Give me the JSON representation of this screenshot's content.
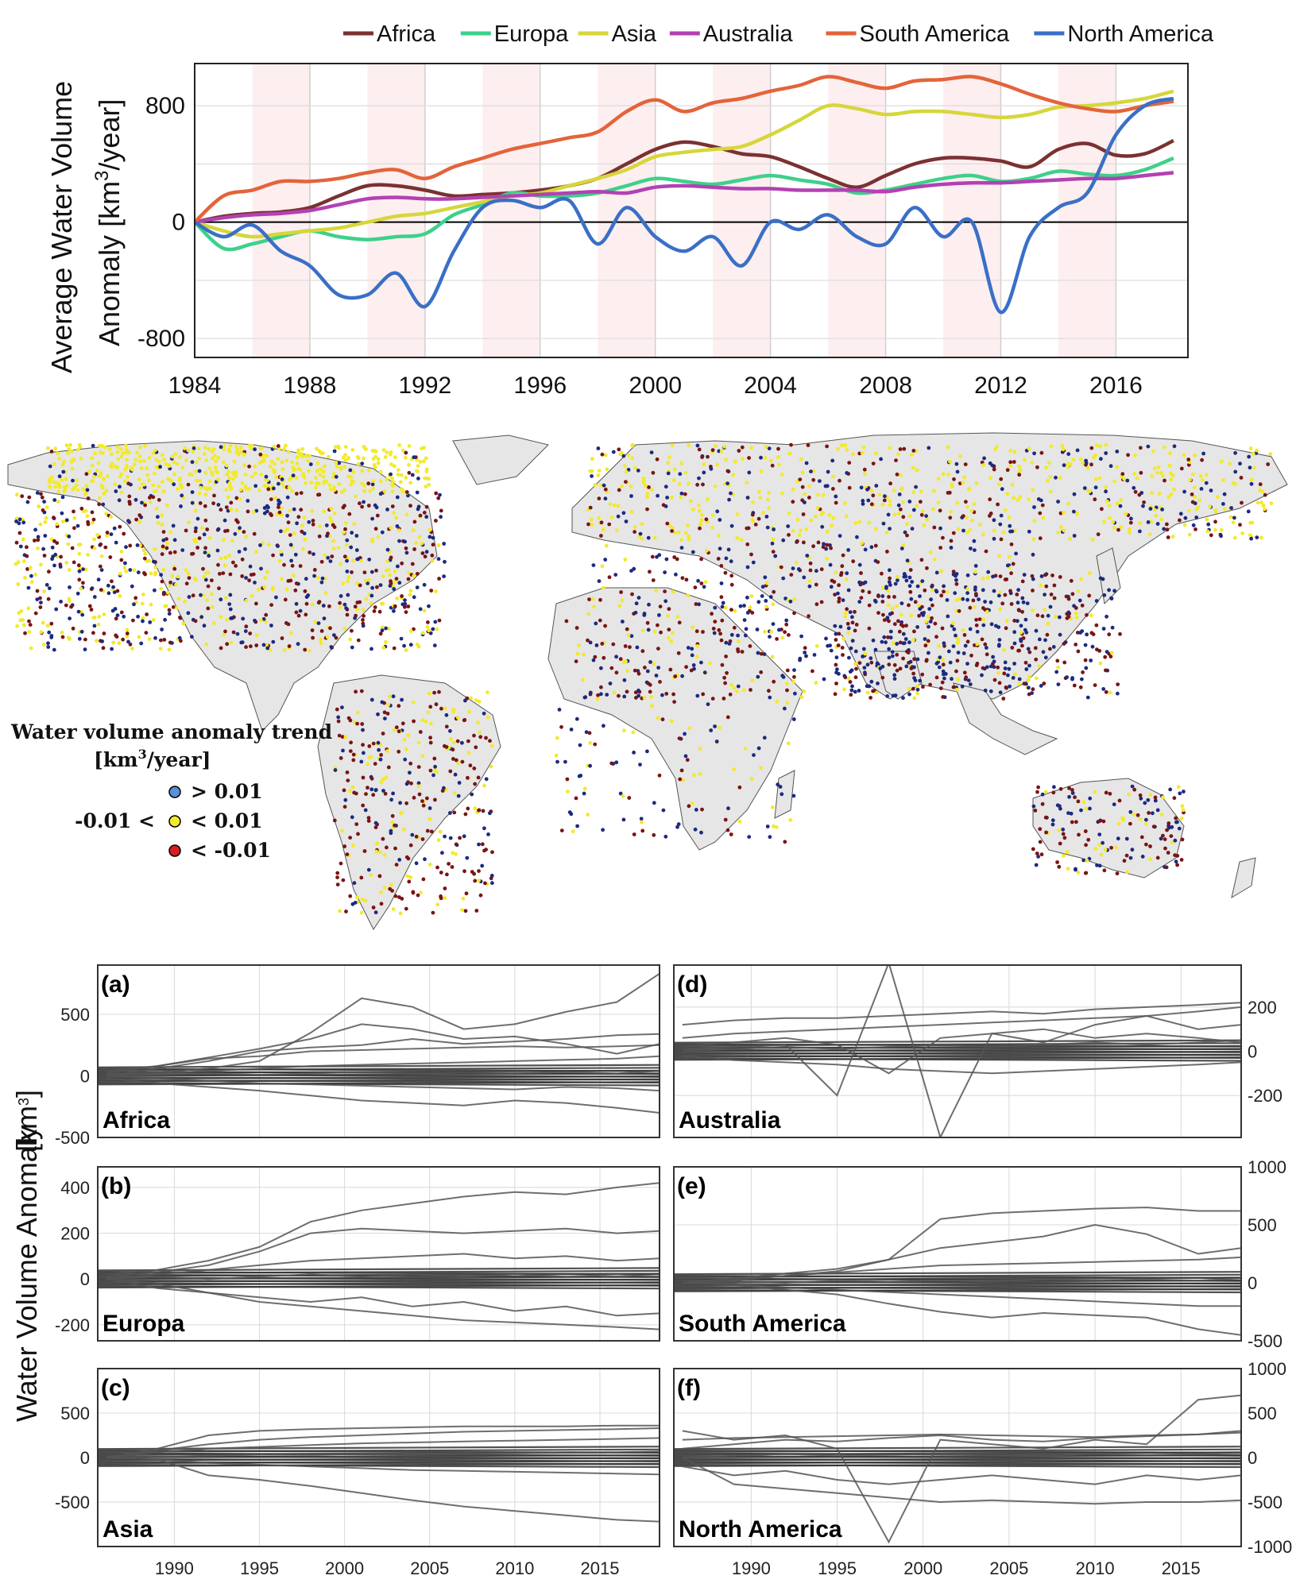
{
  "top_chart": {
    "ylabel_line1": "Average Water Volume",
    "ylabel_line2": "Anomaly [km",
    "ylabel_sup": "3",
    "ylabel_tail": "/year]",
    "legend_placement": "top"
  },
  "map": {
    "legend_title": "Water volume anomaly trend",
    "legend_unit": "[km",
    "legend_unit_sup": "3",
    "legend_unit_tail": "/year]",
    "classes": [
      {
        "prefix": "",
        "label": "> 0.01",
        "color": "#5b8fd6"
      },
      {
        "prefix": "-0.01 <",
        "label": "< 0.01",
        "color": "#f2ea2a"
      },
      {
        "prefix": "",
        "label": "< -0.01",
        "color": "#d62020"
      }
    ],
    "land_color": "#e6e6e6",
    "dot_colors": [
      "#f2ea2a",
      "#1c2a80",
      "#7a1414"
    ]
  },
  "small_multiples": {
    "ylabel": "Water Volume Anomaly",
    "ylabel_unit": "[km",
    "ylabel_unit_sup": "3",
    "ylabel_unit_tail": "]"
  },
  "chart_data": [
    {
      "type": "line",
      "x_range": [
        1984,
        2018.5
      ],
      "ylim": [
        -930,
        1090
      ],
      "xticks": [
        1984,
        1988,
        1992,
        1996,
        2000,
        2004,
        2008,
        2012,
        2016
      ],
      "yticks": [
        -800,
        0,
        800
      ],
      "grid": true,
      "shaded_periods": [
        [
          1986,
          1988
        ],
        [
          1990,
          1992
        ],
        [
          1994,
          1996
        ],
        [
          1998,
          2000
        ],
        [
          2002,
          2004
        ],
        [
          2006,
          2008
        ],
        [
          2010,
          2012
        ],
        [
          2014,
          2016
        ]
      ],
      "x": [
        1984,
        1985,
        1986,
        1987,
        1988,
        1989,
        1990,
        1991,
        1992,
        1993,
        1994,
        1995,
        1996,
        1997,
        1998,
        1999,
        2000,
        2001,
        2002,
        2003,
        2004,
        2005,
        2006,
        2007,
        2008,
        2009,
        2010,
        2011,
        2012,
        2013,
        2014,
        2015,
        2016,
        2017,
        2018
      ],
      "series": [
        {
          "name": "Africa",
          "color": "#7b3131",
          "values": [
            0,
            40,
            60,
            70,
            100,
            180,
            250,
            250,
            220,
            180,
            190,
            200,
            220,
            250,
            300,
            400,
            500,
            550,
            520,
            470,
            450,
            380,
            300,
            240,
            320,
            400,
            440,
            440,
            420,
            380,
            500,
            540,
            460,
            470,
            560
          ]
        },
        {
          "name": "Europa",
          "color": "#3ed08a",
          "values": [
            0,
            -180,
            -150,
            -100,
            -60,
            -100,
            -120,
            -100,
            -80,
            50,
            120,
            200,
            180,
            180,
            200,
            250,
            300,
            280,
            260,
            290,
            320,
            290,
            260,
            200,
            220,
            260,
            300,
            320,
            280,
            300,
            350,
            330,
            320,
            360,
            440
          ]
        },
        {
          "name": "Asia",
          "color": "#d6d63a",
          "values": [
            0,
            -60,
            -100,
            -80,
            -60,
            -40,
            0,
            40,
            60,
            100,
            140,
            180,
            200,
            250,
            300,
            360,
            450,
            480,
            500,
            520,
            600,
            700,
            800,
            780,
            740,
            760,
            760,
            740,
            720,
            740,
            790,
            800,
            820,
            850,
            900
          ]
        },
        {
          "name": "Australia",
          "color": "#b341b3",
          "values": [
            0,
            30,
            50,
            60,
            80,
            120,
            160,
            170,
            160,
            160,
            170,
            180,
            190,
            200,
            210,
            200,
            240,
            250,
            240,
            230,
            230,
            220,
            220,
            220,
            210,
            240,
            260,
            270,
            270,
            280,
            290,
            300,
            300,
            320,
            340
          ]
        },
        {
          "name": "South America",
          "color": "#e3643a",
          "values": [
            0,
            180,
            220,
            280,
            280,
            300,
            340,
            360,
            300,
            380,
            440,
            500,
            540,
            580,
            620,
            760,
            840,
            760,
            820,
            850,
            900,
            940,
            1000,
            960,
            920,
            970,
            980,
            1000,
            950,
            880,
            820,
            780,
            760,
            800,
            830
          ]
        },
        {
          "name": "North America",
          "color": "#3a6fc6",
          "values": [
            0,
            -100,
            -20,
            -200,
            -300,
            -500,
            -500,
            -350,
            -580,
            -200,
            100,
            150,
            100,
            150,
            -150,
            100,
            -100,
            -200,
            -100,
            -300,
            0,
            -50,
            50,
            -100,
            -150,
            100,
            -100,
            0,
            -620,
            -100,
            100,
            200,
            600,
            800,
            850
          ]
        }
      ]
    },
    {
      "type": "line",
      "panel": "(a)",
      "region": "Africa",
      "side": "left",
      "x_range": [
        1985.5,
        2018.5
      ],
      "ylim": [
        -500,
        900
      ],
      "xticks": [
        1990,
        1995,
        2000,
        2005,
        2010,
        2015
      ],
      "yticks": [
        -500,
        0,
        500
      ],
      "x": [
        1986,
        1989,
        1992,
        1995,
        1998,
        2001,
        2004,
        2007,
        2010,
        2013,
        2016,
        2018.5
      ],
      "series": [
        {
          "values": [
            10,
            30,
            60,
            120,
            350,
            630,
            560,
            380,
            420,
            520,
            600,
            830
          ]
        },
        {
          "values": [
            40,
            80,
            150,
            220,
            300,
            420,
            380,
            300,
            320,
            260,
            180,
            260
          ]
        },
        {
          "values": [
            0,
            60,
            120,
            200,
            230,
            250,
            300,
            260,
            280,
            300,
            330,
            340
          ]
        },
        {
          "values": [
            20,
            80,
            140,
            160,
            200,
            210,
            220,
            230,
            240,
            230,
            240,
            250
          ]
        },
        {
          "values": [
            -20,
            -60,
            -90,
            -120,
            -160,
            -200,
            -220,
            -240,
            -200,
            -220,
            -260,
            -300
          ]
        },
        {
          "values": [
            0,
            20,
            40,
            60,
            80,
            90,
            100,
            110,
            120,
            130,
            140,
            160
          ]
        },
        {
          "values": [
            0,
            -20,
            -40,
            -60,
            -70,
            -80,
            -90,
            -100,
            -110,
            -90,
            -100,
            -120
          ]
        },
        {
          "values": [
            0,
            10,
            20,
            10,
            20,
            30,
            20,
            10,
            20,
            30,
            20,
            40
          ]
        }
      ]
    },
    {
      "type": "line",
      "panel": "(d)",
      "region": "Australia",
      "side": "right",
      "x_range": [
        1985.5,
        2018.5
      ],
      "ylim": [
        -390,
        390
      ],
      "xticks": [
        1990,
        1995,
        2000,
        2005,
        2010,
        2015
      ],
      "yticks": [
        -200,
        0,
        200
      ],
      "x": [
        1986,
        1989,
        1992,
        1995,
        1998,
        2001,
        2004,
        2007,
        2010,
        2013,
        2016,
        2018.5
      ],
      "series": [
        {
          "values": [
            10,
            20,
            30,
            -200,
            400,
            -390,
            80,
            100,
            60,
            80,
            60,
            40
          ]
        },
        {
          "values": [
            120,
            140,
            150,
            150,
            160,
            170,
            180,
            170,
            190,
            200,
            210,
            220
          ]
        },
        {
          "values": [
            60,
            80,
            90,
            100,
            110,
            120,
            130,
            140,
            150,
            160,
            180,
            200
          ]
        },
        {
          "values": [
            -20,
            -40,
            -50,
            -60,
            -80,
            -90,
            -100,
            -90,
            -80,
            -70,
            -60,
            -50
          ]
        },
        {
          "values": [
            20,
            40,
            60,
            30,
            -100,
            60,
            80,
            40,
            120,
            160,
            100,
            120
          ]
        },
        {
          "values": [
            0,
            10,
            20,
            10,
            20,
            30,
            20,
            30,
            40,
            30,
            40,
            50
          ]
        }
      ]
    },
    {
      "type": "line",
      "panel": "(b)",
      "region": "Europa",
      "side": "left",
      "x_range": [
        1985.5,
        2018.5
      ],
      "ylim": [
        -270,
        490
      ],
      "xticks": [
        1990,
        1995,
        2000,
        2005,
        2010,
        2015
      ],
      "yticks": [
        -200,
        0,
        200,
        400
      ],
      "x": [
        1986,
        1989,
        1992,
        1995,
        1998,
        2001,
        2004,
        2007,
        2010,
        2013,
        2016,
        2018.5
      ],
      "series": [
        {
          "values": [
            20,
            40,
            80,
            140,
            250,
            300,
            330,
            360,
            380,
            370,
            400,
            420
          ]
        },
        {
          "values": [
            10,
            30,
            60,
            120,
            200,
            220,
            210,
            200,
            210,
            220,
            200,
            210
          ]
        },
        {
          "values": [
            0,
            -20,
            -60,
            -100,
            -120,
            -140,
            -160,
            -180,
            -190,
            -200,
            -210,
            -220
          ]
        },
        {
          "values": [
            0,
            20,
            40,
            60,
            80,
            90,
            100,
            110,
            90,
            100,
            80,
            90
          ]
        },
        {
          "values": [
            0,
            -40,
            -60,
            -80,
            -100,
            -80,
            -120,
            -100,
            -140,
            -120,
            -160,
            -150
          ]
        },
        {
          "values": [
            0,
            10,
            0,
            10,
            20,
            10,
            20,
            10,
            20,
            10,
            20,
            10
          ]
        }
      ]
    },
    {
      "type": "line",
      "panel": "(e)",
      "region": "South America",
      "side": "right",
      "x_range": [
        1985.5,
        2018.5
      ],
      "ylim": [
        -500,
        1000
      ],
      "xticks": [
        1990,
        1995,
        2000,
        2005,
        2010,
        2015
      ],
      "yticks": [
        -500,
        0,
        500,
        1000
      ],
      "x": [
        1986,
        1989,
        1992,
        1995,
        1998,
        2001,
        2004,
        2007,
        2010,
        2013,
        2016,
        2018.5
      ],
      "series": [
        {
          "values": [
            0,
            20,
            60,
            100,
            200,
            550,
            600,
            620,
            640,
            650,
            620,
            620
          ]
        },
        {
          "values": [
            0,
            40,
            80,
            120,
            200,
            300,
            350,
            400,
            500,
            420,
            250,
            300
          ]
        },
        {
          "values": [
            0,
            -20,
            -60,
            -100,
            -180,
            -250,
            -300,
            -260,
            -280,
            -300,
            -400,
            -450
          ]
        },
        {
          "values": [
            0,
            30,
            60,
            90,
            120,
            150,
            160,
            170,
            180,
            190,
            200,
            220
          ]
        },
        {
          "values": [
            0,
            -10,
            -40,
            -60,
            -80,
            -100,
            -120,
            -140,
            -160,
            -180,
            -200,
            -200
          ]
        },
        {
          "values": [
            0,
            10,
            0,
            20,
            10,
            20,
            10,
            30,
            20,
            30,
            20,
            40
          ]
        }
      ]
    },
    {
      "type": "line",
      "panel": "(c)",
      "region": "Asia",
      "side": "left",
      "x_range": [
        1985.5,
        2018.5
      ],
      "ylim": [
        -1000,
        1000
      ],
      "xticks": [
        1990,
        1995,
        2000,
        2005,
        2010,
        2015
      ],
      "yticks": [
        -500,
        0,
        500
      ],
      "x": [
        1986,
        1989,
        1992,
        1995,
        1998,
        2001,
        2004,
        2007,
        2010,
        2013,
        2016,
        2018.5
      ],
      "series": [
        {
          "values": [
            0,
            -20,
            -200,
            -250,
            -320,
            -400,
            -480,
            -550,
            -600,
            -650,
            -700,
            -720
          ]
        },
        {
          "values": [
            0,
            100,
            250,
            300,
            320,
            330,
            340,
            350,
            350,
            350,
            360,
            360
          ]
        },
        {
          "values": [
            0,
            80,
            150,
            200,
            230,
            250,
            270,
            290,
            300,
            310,
            320,
            330
          ]
        },
        {
          "values": [
            0,
            60,
            100,
            120,
            140,
            160,
            170,
            180,
            190,
            200,
            210,
            220
          ]
        },
        {
          "values": [
            0,
            -20,
            -60,
            -80,
            -100,
            -120,
            -140,
            -150,
            -160,
            -170,
            -180,
            -190
          ]
        },
        {
          "values": [
            0,
            10,
            20,
            30,
            30,
            40,
            40,
            50,
            50,
            60,
            60,
            70
          ]
        }
      ]
    },
    {
      "type": "line",
      "panel": "(f)",
      "region": "North America",
      "side": "right",
      "x_range": [
        1985.5,
        2018.5
      ],
      "ylim": [
        -1000,
        1000
      ],
      "xticks": [
        1990,
        1995,
        2000,
        2005,
        2010,
        2015
      ],
      "yticks": [
        -1000,
        -500,
        0,
        500,
        1000
      ],
      "x": [
        1986,
        1989,
        1992,
        1995,
        1998,
        2001,
        2004,
        2007,
        2010,
        2013,
        2016,
        2018.5
      ],
      "series": [
        {
          "values": [
            300,
            200,
            250,
            100,
            -950,
            200,
            150,
            100,
            200,
            150,
            650,
            700
          ]
        },
        {
          "values": [
            200,
            220,
            230,
            240,
            250,
            260,
            250,
            240,
            230,
            250,
            260,
            280
          ]
        },
        {
          "values": [
            0,
            -300,
            -350,
            -400,
            -450,
            -500,
            -480,
            -500,
            -520,
            -500,
            -500,
            -480
          ]
        },
        {
          "values": [
            100,
            150,
            200,
            180,
            220,
            250,
            200,
            180,
            220,
            240,
            260,
            300
          ]
        },
        {
          "values": [
            -100,
            -200,
            -150,
            -250,
            -300,
            -250,
            -200,
            -250,
            -300,
            -200,
            -250,
            -200
          ]
        },
        {
          "values": [
            0,
            20,
            40,
            20,
            30,
            40,
            30,
            20,
            40,
            30,
            40,
            50
          ]
        }
      ]
    }
  ]
}
